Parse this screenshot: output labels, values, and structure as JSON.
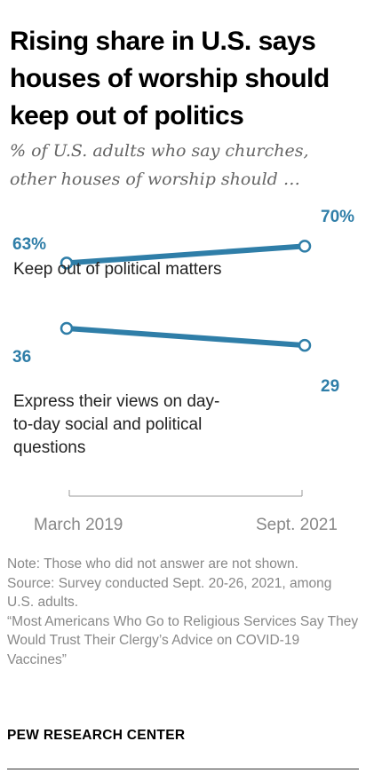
{
  "title": "Rising share in U.S. says houses of worship should keep out of politics",
  "subtitle": "% of U.S. adults who say churches, other houses of worship should …",
  "colors": {
    "series": "#2f7ea8",
    "axis": "#999999",
    "text_muted": "#888888"
  },
  "chart_data": {
    "type": "line",
    "title": "Rising share in U.S. says houses of worship should keep out of politics",
    "subtitle": "% of U.S. adults who say churches, other houses of worship should …",
    "x": [
      "March 2019",
      "Sept. 2021"
    ],
    "series": [
      {
        "name": "Keep out of political matters",
        "values": [
          63,
          70
        ],
        "value_labels": [
          "63%",
          "70%"
        ]
      },
      {
        "name": "Express their views on day-to-day social and political questions",
        "values": [
          36,
          29
        ],
        "value_labels": [
          "36",
          "29"
        ]
      }
    ],
    "xlabel": "",
    "ylabel": "",
    "grid": false,
    "legend": "inline labels"
  },
  "notes": {
    "note": "Note: Those who did not answer are not shown.",
    "source": "Source: Survey conducted Sept. 20-26, 2021, among U.S. adults.",
    "report": "“Most Americans Who Go to Religious Services Say They Would Trust Their Clergy’s Advice on COVID-19 Vaccines”"
  },
  "brand": "PEW RESEARCH CENTER"
}
